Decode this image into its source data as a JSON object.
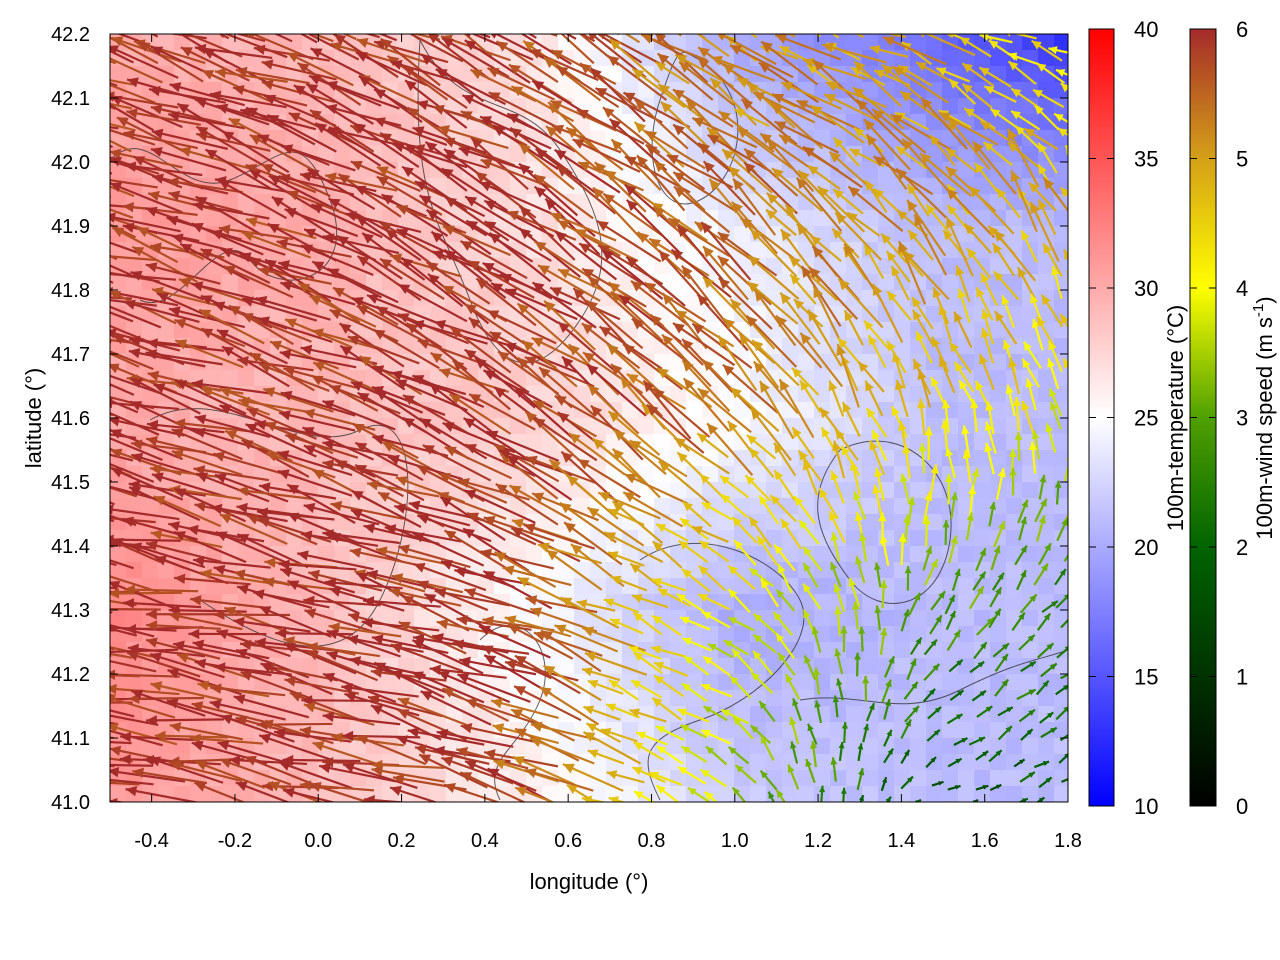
{
  "chart_data": {
    "type": "heatmap",
    "subtype": "vector-field-over-scalar-field",
    "xlabel": "longitude (°)",
    "ylabel": "latitude (°)",
    "xlim": [
      -0.5,
      1.8
    ],
    "ylim": [
      41.0,
      42.2
    ],
    "xticks": [
      "-0.4",
      "-0.2",
      "0.0",
      "0.2",
      "0.4",
      "0.6",
      "0.8",
      "1.0",
      "1.2",
      "1.4",
      "1.6",
      "1.8"
    ],
    "xtick_values": [
      -0.4,
      -0.2,
      0.0,
      0.2,
      0.4,
      0.6,
      0.8,
      1.0,
      1.2,
      1.4,
      1.6,
      1.8
    ],
    "yticks": [
      "41.0",
      "41.1",
      "41.2",
      "41.3",
      "41.4",
      "41.5",
      "41.6",
      "41.7",
      "41.8",
      "41.9",
      "42.0",
      "42.1",
      "42.2"
    ],
    "ytick_values": [
      41.0,
      41.1,
      41.2,
      41.3,
      41.4,
      41.5,
      41.6,
      41.7,
      41.8,
      41.9,
      42.0,
      42.1,
      42.2
    ],
    "grid_lon": [
      -0.5,
      0.0,
      0.5,
      1.0,
      1.5,
      1.8
    ],
    "grid_lat": [
      41.0,
      41.3,
      41.6,
      41.9,
      42.2
    ],
    "temperature_c": [
      [
        31,
        29,
        26,
        22,
        21,
        21
      ],
      [
        32,
        29,
        25,
        20,
        21,
        21
      ],
      [
        30,
        29,
        28,
        25,
        21,
        21
      ],
      [
        31,
        30,
        27,
        24,
        21,
        21
      ],
      [
        30,
        29,
        27,
        20,
        16,
        13
      ]
    ],
    "wind_speed_ms": [
      [
        6,
        6,
        6,
        3.5,
        1.5,
        2
      ],
      [
        6,
        6,
        6,
        4,
        3,
        2.5
      ],
      [
        6,
        6,
        6,
        5.5,
        4.5,
        4
      ],
      [
        6,
        6,
        6,
        5.5,
        5,
        5
      ],
      [
        6,
        6,
        6,
        5,
        5,
        4
      ]
    ],
    "wind_direction_toward_deg": [
      [
        170,
        170,
        165,
        150,
        20,
        30
      ],
      [
        170,
        168,
        160,
        150,
        60,
        40
      ],
      [
        165,
        160,
        150,
        135,
        110,
        110
      ],
      [
        165,
        160,
        150,
        140,
        130,
        120
      ],
      [
        160,
        160,
        150,
        150,
        160,
        160
      ]
    ],
    "colorbar_temperature": {
      "label": "100m-temperature (°C)",
      "range": [
        10,
        40
      ],
      "ticks": [
        "10",
        "15",
        "20",
        "25",
        "30",
        "35",
        "40"
      ],
      "colors": {
        "low": "#0000ff",
        "mid": "#ffffff",
        "high": "#ff0000"
      }
    },
    "colorbar_wind": {
      "label_main": "100m-wind speed (m s",
      "label_sup": "-1",
      "label_end": ")",
      "range": [
        0,
        6
      ],
      "ticks": [
        "0",
        "1",
        "2",
        "3",
        "4",
        "5",
        "6"
      ],
      "colors": [
        "#000000",
        "#006400",
        "#228b00",
        "#9acd00",
        "#ffff00",
        "#daa520",
        "#a52a2a"
      ]
    }
  }
}
